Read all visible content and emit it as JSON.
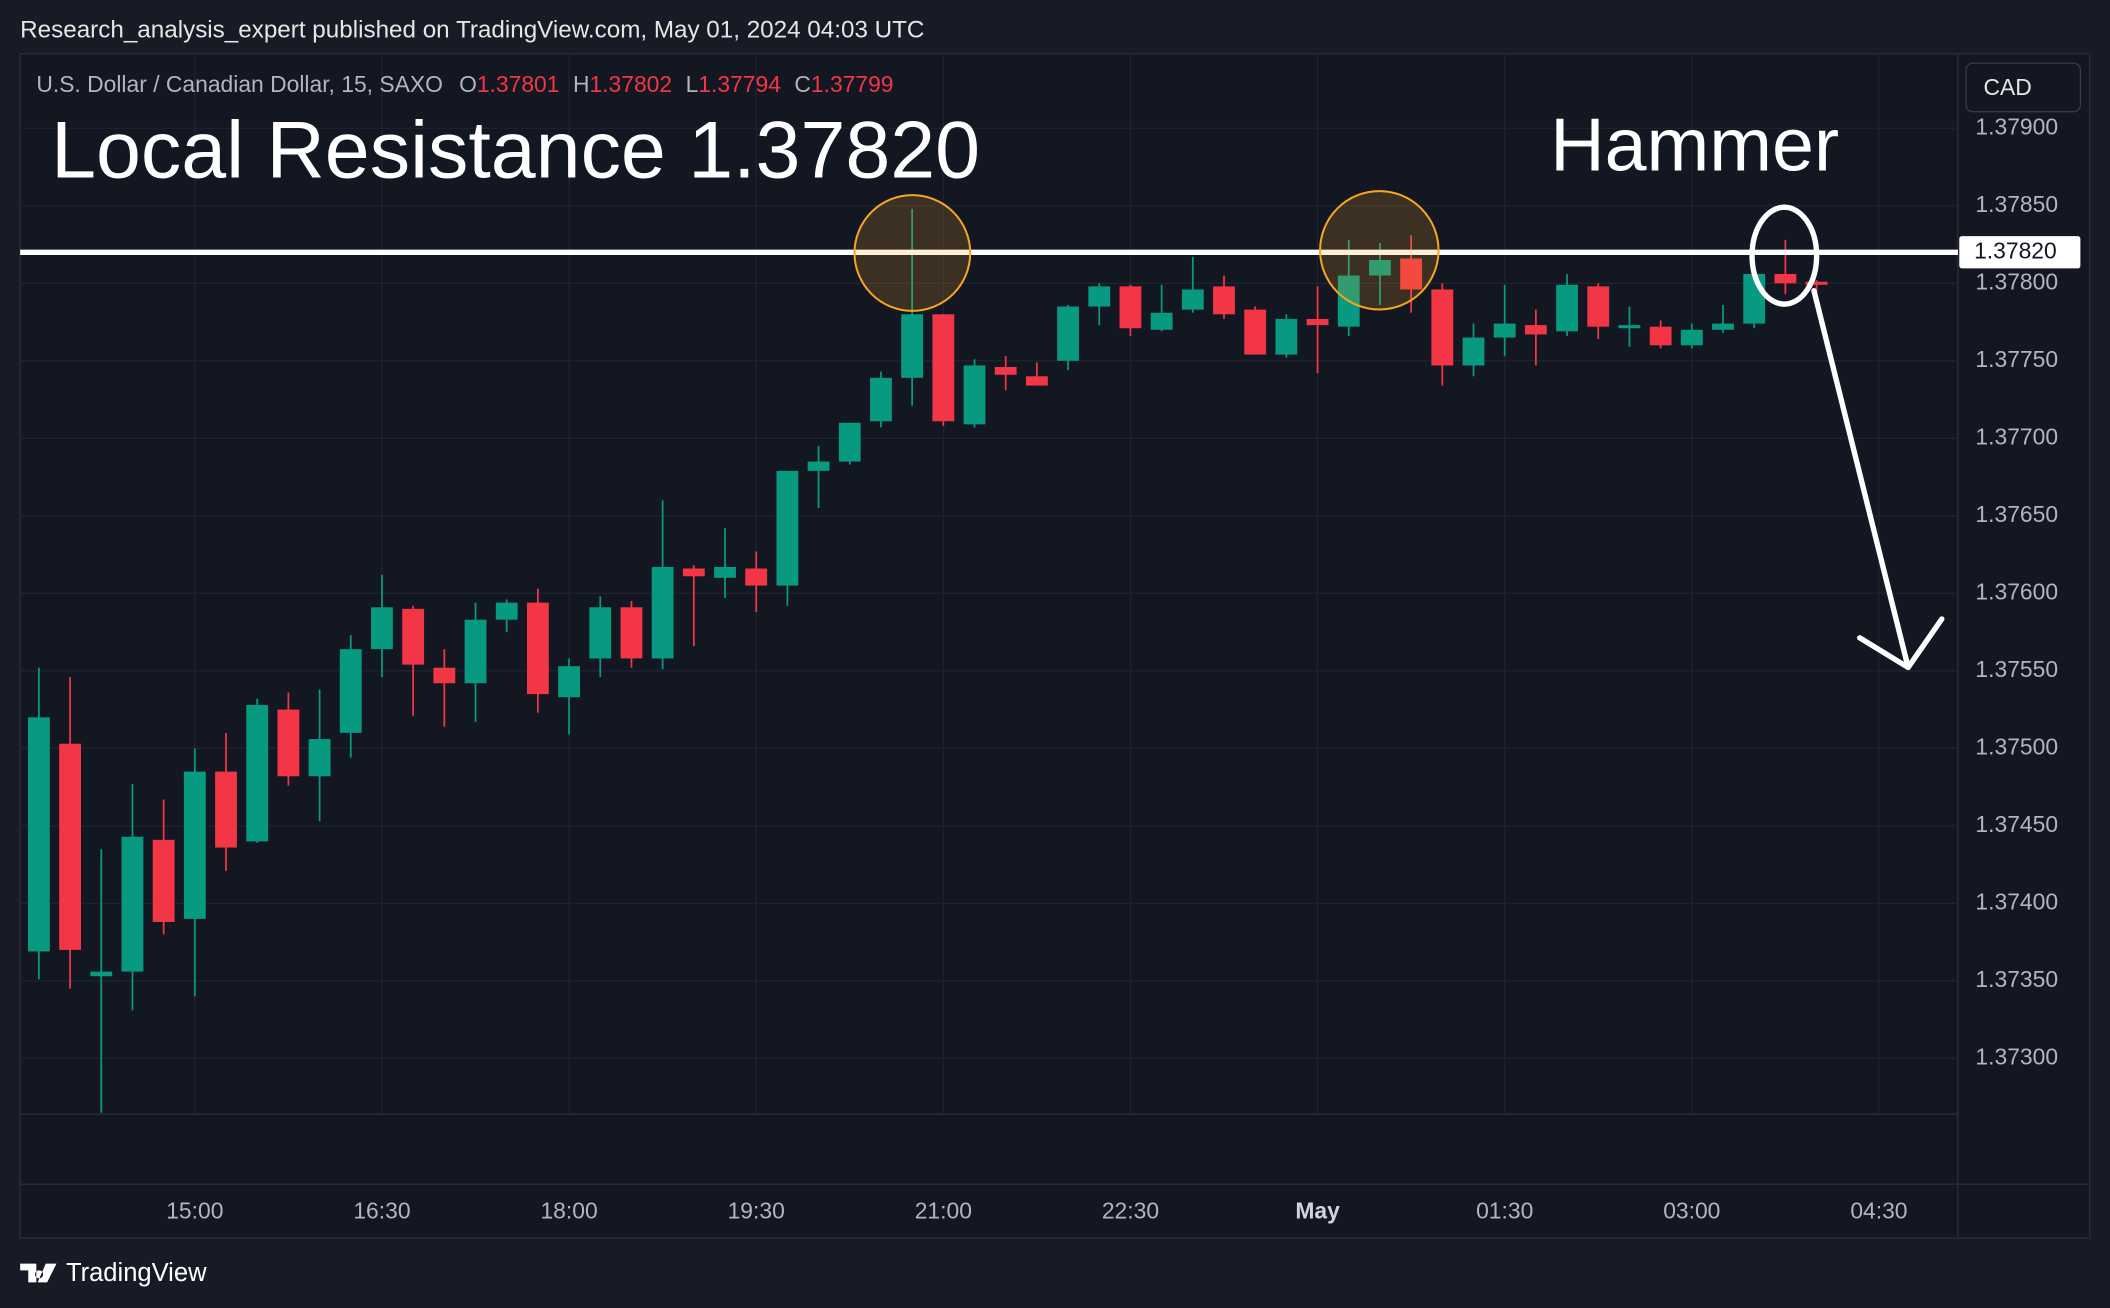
{
  "chart_data": {
    "type": "candlestick",
    "published": "Research_analysis_expert published on TradingView.com, May 01, 2024 04:03 UTC",
    "symbol": "U.S. Dollar / Canadian Dollar, 15, SAXO",
    "ohlc_labels": [
      "O",
      "H",
      "L",
      "C"
    ],
    "currency": "CAD",
    "brand": "TradingView",
    "annotations": [
      "Local Resistance 1.37820",
      "Hammer"
    ],
    "resistance": {
      "value": 1.3782,
      "label": "1.37820",
      "color": "#ffffff"
    },
    "up_color": "#089981",
    "down_color": "#f23645",
    "grid": true,
    "x": [
      825,
      840,
      855,
      870,
      885,
      900,
      915,
      930,
      945,
      960,
      975,
      990,
      1005,
      1020,
      1035,
      1050,
      1065,
      1080,
      1095,
      1110,
      1125,
      1140,
      1155,
      1170,
      1185,
      1200,
      1215,
      1230,
      1245,
      1260,
      1275,
      1290,
      1305,
      1320,
      1335,
      1350,
      1365,
      1380,
      1395,
      1410,
      1425,
      1440,
      1455,
      1470,
      1485,
      1500,
      1515,
      1530,
      1545,
      1560,
      1575,
      1590,
      1605,
      1620,
      1635,
      1650,
      1665,
      1680
    ],
    "open": [
      1.37369,
      1.37503,
      1.37353,
      1.37356,
      1.37441,
      1.3739,
      1.37485,
      1.3744,
      1.37525,
      1.37482,
      1.3751,
      1.37564,
      1.3759,
      1.37552,
      1.37542,
      1.37583,
      1.37594,
      1.37533,
      1.37558,
      1.37591,
      1.37558,
      1.37616,
      1.3761,
      1.37616,
      1.37605,
      1.37679,
      1.37685,
      1.37711,
      1.37739,
      1.3778,
      1.37709,
      1.37746,
      1.3774,
      1.3775,
      1.37785,
      1.37798,
      1.3777,
      1.37783,
      1.37798,
      1.37783,
      1.37754,
      1.37777,
      1.37772,
      1.37805,
      1.37816,
      1.37796,
      1.37747,
      1.37765,
      1.37773,
      1.37769,
      1.37798,
      1.37771,
      1.37772,
      1.3776,
      1.3777,
      1.37774,
      1.37806,
      1.37801
    ],
    "high": [
      1.37552,
      1.37546,
      1.37435,
      1.37477,
      1.37467,
      1.375,
      1.3751,
      1.37532,
      1.37536,
      1.37538,
      1.37573,
      1.37612,
      1.37592,
      1.37564,
      1.37594,
      1.37596,
      1.37603,
      1.37558,
      1.37598,
      1.37595,
      1.3766,
      1.37618,
      1.37642,
      1.37627,
      1.37679,
      1.37695,
      1.3771,
      1.37743,
      1.37848,
      1.3778,
      1.37751,
      1.37753,
      1.37749,
      1.37786,
      1.378,
      1.37799,
      1.37799,
      1.37817,
      1.37805,
      1.37785,
      1.3778,
      1.37798,
      1.37828,
      1.37826,
      1.37831,
      1.378,
      1.37774,
      1.37799,
      1.37783,
      1.37806,
      1.378,
      1.37785,
      1.37776,
      1.37774,
      1.37786,
      1.37809,
      1.37828,
      1.37802
    ],
    "low": [
      1.37351,
      1.37345,
      1.37265,
      1.37331,
      1.3738,
      1.3734,
      1.37421,
      1.37439,
      1.37476,
      1.37453,
      1.37494,
      1.37546,
      1.37521,
      1.37514,
      1.37517,
      1.37575,
      1.37523,
      1.37509,
      1.37546,
      1.37552,
      1.37551,
      1.37566,
      1.37597,
      1.37588,
      1.37592,
      1.37655,
      1.37683,
      1.37707,
      1.37721,
      1.37708,
      1.37707,
      1.37731,
      1.37734,
      1.37744,
      1.37773,
      1.37766,
      1.37769,
      1.37781,
      1.37777,
      1.37754,
      1.37752,
      1.37742,
      1.37766,
      1.37786,
      1.37781,
      1.37734,
      1.3774,
      1.37753,
      1.37747,
      1.37766,
      1.37764,
      1.37759,
      1.37758,
      1.37758,
      1.37768,
      1.37771,
      1.37793,
      1.37794
    ],
    "close": [
      1.3752,
      1.3737,
      1.37356,
      1.37443,
      1.37388,
      1.37485,
      1.37436,
      1.37528,
      1.37482,
      1.37506,
      1.37564,
      1.37591,
      1.37554,
      1.37542,
      1.37583,
      1.37594,
      1.37535,
      1.37553,
      1.37591,
      1.37558,
      1.37617,
      1.37611,
      1.37617,
      1.37605,
      1.37679,
      1.37685,
      1.3771,
      1.37739,
      1.3778,
      1.37711,
      1.37747,
      1.37741,
      1.37734,
      1.37785,
      1.37798,
      1.37771,
      1.37781,
      1.37796,
      1.3778,
      1.37754,
      1.37777,
      1.37773,
      1.37805,
      1.37815,
      1.37796,
      1.37747,
      1.37765,
      1.37774,
      1.37767,
      1.37799,
      1.37772,
      1.37773,
      1.3776,
      1.3777,
      1.37774,
      1.37806,
      1.378,
      1.37799
    ],
    "xlim": [
      816,
      1748
    ],
    "ylim": [
      1.37264,
      1.37948
    ],
    "xticks": [
      {
        "value": 900,
        "label": "15:00"
      },
      {
        "value": 990,
        "label": "16:30"
      },
      {
        "value": 1080,
        "label": "18:00"
      },
      {
        "value": 1170,
        "label": "19:30"
      },
      {
        "value": 1260,
        "label": "21:00"
      },
      {
        "value": 1350,
        "label": "22:30"
      },
      {
        "value": 1440,
        "label": "May"
      },
      {
        "value": 1530,
        "label": "01:30"
      },
      {
        "value": 1620,
        "label": "03:00"
      },
      {
        "value": 1710,
        "label": "04:30"
      }
    ],
    "yticks": [
      {
        "value": 1.373,
        "label": "1.37300"
      },
      {
        "value": 1.3735,
        "label": "1.37350"
      },
      {
        "value": 1.374,
        "label": "1.37400"
      },
      {
        "value": 1.3745,
        "label": "1.37450"
      },
      {
        "value": 1.375,
        "label": "1.37500"
      },
      {
        "value": 1.3755,
        "label": "1.37550"
      },
      {
        "value": 1.376,
        "label": "1.37600"
      },
      {
        "value": 1.3765,
        "label": "1.37650"
      },
      {
        "value": 1.377,
        "label": "1.37700"
      },
      {
        "value": 1.3775,
        "label": "1.37750"
      },
      {
        "value": 1.378,
        "label": "1.37800"
      },
      {
        "value": 1.3785,
        "label": "1.37850"
      },
      {
        "value": 1.379,
        "label": "1.37900"
      }
    ]
  }
}
